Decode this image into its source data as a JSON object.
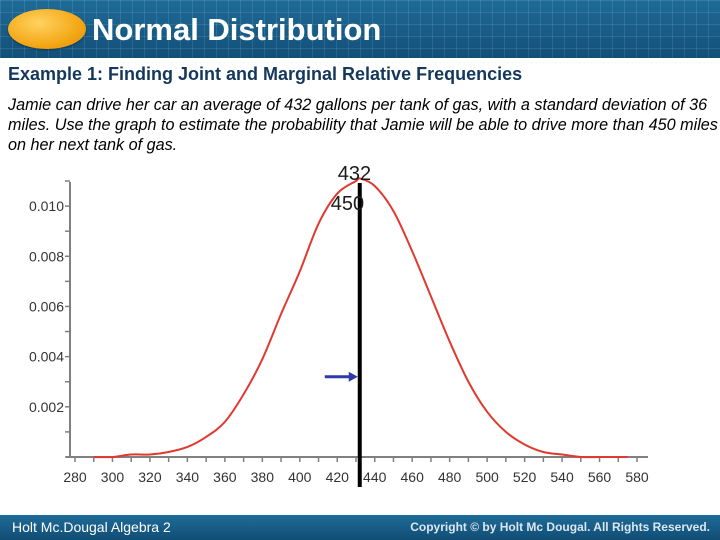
{
  "header": {
    "title": "Normal Distribution"
  },
  "subtitle": "Example 1: Finding Joint and Marginal Relative Frequencies",
  "problem_text": "Jamie can drive her car an average of 432 gallons per tank of gas, with a standard deviation of 36 miles. Use the graph to estimate the probability that Jamie will be able to drive more than 450 miles on her next tank of gas.",
  "markers": {
    "mean_label": "432",
    "threshold_label": "450"
  },
  "footer": {
    "left": "Holt Mc.Dougal Algebra 2",
    "right": "Copyright © by Holt Mc Dougal. All Rights Reserved."
  },
  "colors": {
    "header": "#1a5f8c",
    "curve": "#e0392f",
    "axis": "#808080",
    "arrow": "#2f3aa6"
  },
  "chart_data": {
    "type": "line",
    "title": "",
    "xlabel": "",
    "ylabel": "",
    "xlim": [
      280,
      580
    ],
    "ylim": [
      0,
      0.011
    ],
    "x_ticks": [
      280,
      300,
      320,
      340,
      360,
      380,
      400,
      420,
      440,
      460,
      480,
      500,
      520,
      540,
      560,
      580
    ],
    "x_tick_labels": [
      "280",
      "300",
      "320",
      "340",
      "360",
      "380",
      "400",
      "420",
      "440",
      "460",
      "480",
      "500",
      "520",
      "540",
      "560",
      "580"
    ],
    "y_ticks": [
      0.002,
      0.004,
      0.006,
      0.008,
      0.01
    ],
    "y_tick_labels": [
      "0.002",
      "0.004",
      "0.006",
      "0.008",
      "0.010"
    ],
    "grid": false,
    "series": [
      {
        "x": [
          290,
          300,
          310,
          320,
          330,
          340,
          350,
          360,
          370,
          380,
          390,
          400,
          410,
          420,
          430,
          432,
          440,
          450,
          460,
          470,
          480,
          490,
          500,
          510,
          520,
          530,
          540,
          550,
          560,
          570,
          575
        ],
        "y": [
          0.0,
          0.0,
          0.0001,
          0.0001,
          0.0002,
          0.0004,
          0.0008,
          0.0014,
          0.0025,
          0.0039,
          0.0057,
          0.0074,
          0.0093,
          0.0105,
          0.011,
          0.0111,
          0.0108,
          0.0098,
          0.0082,
          0.0064,
          0.0046,
          0.003,
          0.0018,
          0.001,
          0.0005,
          0.0002,
          0.0001,
          0.0,
          0.0,
          0.0,
          0.0
        ]
      }
    ],
    "vertical_line_x": 432,
    "arrow_y": 0.0032
  }
}
